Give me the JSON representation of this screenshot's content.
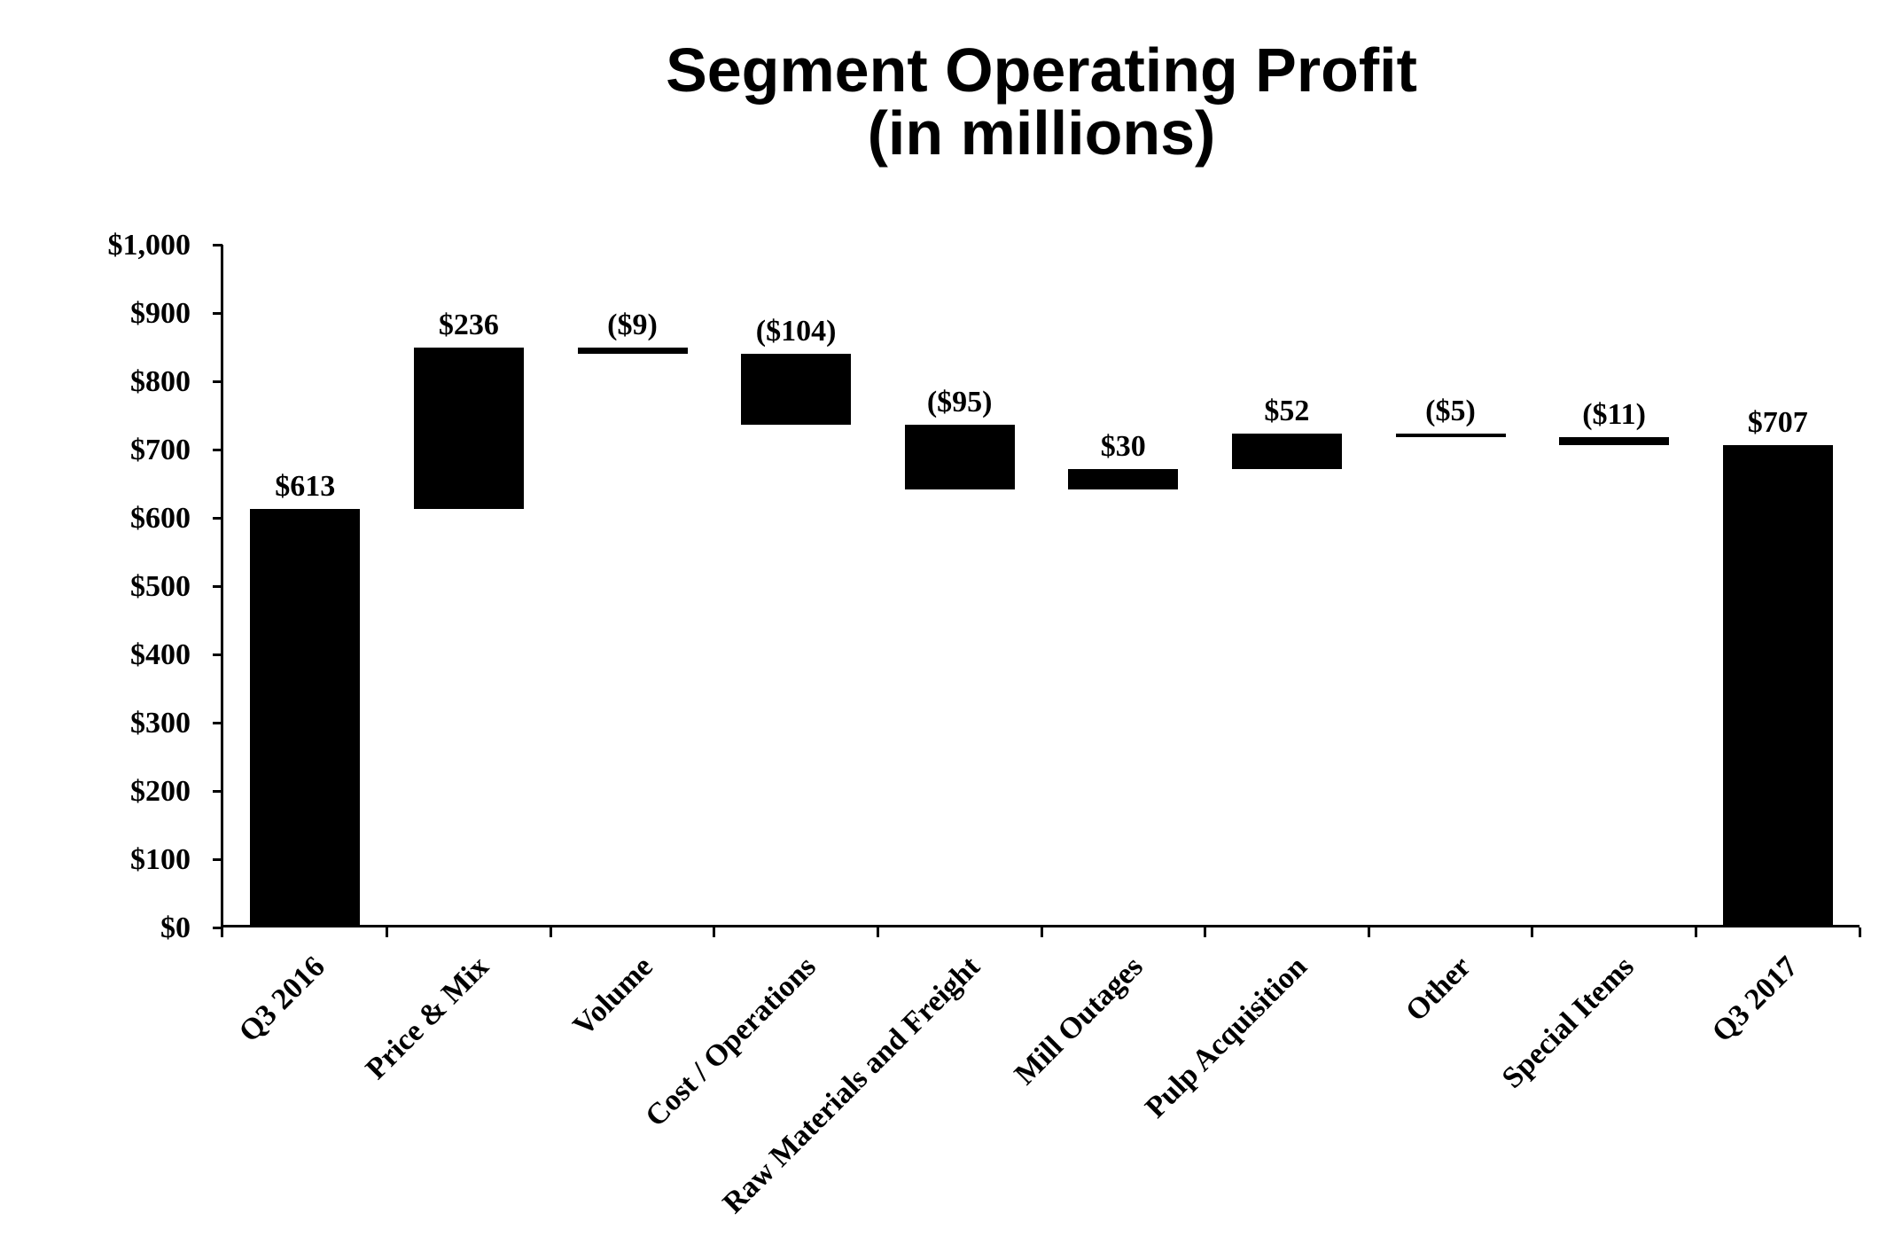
{
  "page": {
    "background": "#ffffff"
  },
  "chart_data": {
    "type": "bar",
    "subtype": "waterfall",
    "title": "Segment Operating Profit",
    "subtitle": "(in millions)",
    "categories": [
      "Q3 2016",
      "Price & Mix",
      "Volume",
      "Cost / Operations",
      "Raw Materials and Freight",
      "Mill Outages",
      "Pulp Acquisition",
      "Other",
      "Special Items",
      "Q3 2017"
    ],
    "series": [
      {
        "name": "Segment Operating Profit",
        "values": [
          613,
          236,
          -9,
          -104,
          -95,
          30,
          52,
          -5,
          -11,
          707
        ]
      }
    ],
    "bar_roles": [
      "total",
      "delta",
      "delta",
      "delta",
      "delta",
      "delta",
      "delta",
      "delta",
      "delta",
      "total"
    ],
    "data_labels": [
      "$613",
      "$236",
      "($9)",
      "($104)",
      "($95)",
      "$30",
      "$52",
      "($5)",
      "($11)",
      "$707"
    ],
    "running_totals": [
      613,
      849,
      840,
      736,
      641,
      671,
      723,
      718,
      707,
      707
    ],
    "xlabel": "",
    "ylabel": "",
    "ylim": [
      0,
      1000
    ],
    "y_tick_interval": 100,
    "y_tick_labels": [
      "$0",
      "$100",
      "$200",
      "$300",
      "$400",
      "$500",
      "$600",
      "$700",
      "$800",
      "$900",
      "$1,000"
    ],
    "grid": false,
    "legend": "none",
    "bar_color": "#000000",
    "axis_color": "#000000",
    "text_color": "#000000"
  }
}
